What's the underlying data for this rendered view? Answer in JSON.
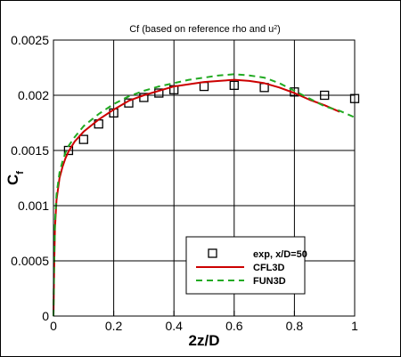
{
  "chart_data": {
    "type": "line",
    "title_main": "Cf (based on reference rho and u",
    "title_sup": "2",
    "title_end": ")",
    "xlabel": "2z/D",
    "ylabel_main": "C",
    "ylabel_sub": "f",
    "xlim": [
      0,
      1
    ],
    "ylim": [
      0,
      0.0025
    ],
    "xticks": [
      0,
      0.2,
      0.4,
      0.6,
      0.8,
      1
    ],
    "xtick_labels": [
      "0",
      "0.2",
      "0.4",
      "0.6",
      "0.8",
      "1"
    ],
    "yticks": [
      0,
      0.0005,
      0.001,
      0.0015,
      0.002,
      0.0025
    ],
    "ytick_labels": [
      "0",
      "0.0005",
      "0.001",
      "0.0015",
      "0.002",
      "0.0025"
    ],
    "grid": true,
    "legend_position": "bottom-right",
    "series": [
      {
        "name": "exp, x/D=50",
        "style": "square-markers",
        "color": "#000000",
        "x": [
          0.05,
          0.1,
          0.15,
          0.2,
          0.25,
          0.3,
          0.35,
          0.4,
          0.5,
          0.6,
          0.7,
          0.8,
          0.9,
          1.0
        ],
        "y": [
          0.0015,
          0.0016,
          0.00174,
          0.00184,
          0.00193,
          0.00198,
          0.00202,
          0.00205,
          0.00208,
          0.00209,
          0.00207,
          0.00203,
          0.002,
          0.00197
        ]
      },
      {
        "name": "CFL3D",
        "style": "solid",
        "color": "#cc0000",
        "x": [
          0,
          0.002,
          0.005,
          0.01,
          0.02,
          0.03,
          0.04,
          0.05,
          0.07,
          0.1,
          0.15,
          0.2,
          0.25,
          0.3,
          0.35,
          0.4,
          0.45,
          0.5,
          0.55,
          0.6,
          0.65,
          0.7,
          0.75,
          0.8,
          0.85,
          0.9,
          0.95
        ],
        "y": [
          0,
          0.0004,
          0.0008,
          0.00105,
          0.00125,
          0.00135,
          0.00143,
          0.00149,
          0.00158,
          0.00167,
          0.00178,
          0.00187,
          0.00195,
          0.002,
          0.00204,
          0.00208,
          0.0021,
          0.00212,
          0.00213,
          0.00214,
          0.00213,
          0.00211,
          0.00207,
          0.00202,
          0.00196,
          0.00191,
          0.00185
        ]
      },
      {
        "name": "FUN3D",
        "style": "dashed",
        "color": "#22aa22",
        "x": [
          0,
          0.002,
          0.005,
          0.01,
          0.02,
          0.03,
          0.04,
          0.05,
          0.07,
          0.1,
          0.15,
          0.2,
          0.25,
          0.3,
          0.35,
          0.4,
          0.45,
          0.5,
          0.55,
          0.6,
          0.65,
          0.7,
          0.75,
          0.8,
          0.85,
          0.9,
          0.95,
          1.0
        ],
        "y": [
          0,
          0.00045,
          0.00085,
          0.0011,
          0.0013,
          0.0014,
          0.00148,
          0.00154,
          0.00162,
          0.00172,
          0.00183,
          0.00192,
          0.00199,
          0.00204,
          0.00208,
          0.00211,
          0.00214,
          0.00216,
          0.00218,
          0.00219,
          0.00218,
          0.00216,
          0.00211,
          0.00204,
          0.00197,
          0.0019,
          0.00186,
          0.0018
        ]
      }
    ]
  }
}
